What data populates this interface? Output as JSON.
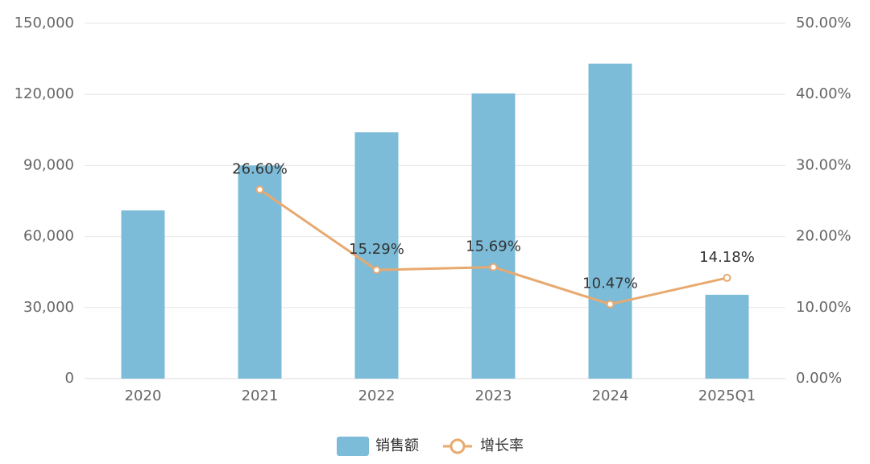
{
  "chart_data": {
    "type": "bar-line",
    "categories": [
      "2020",
      "2021",
      "2022",
      "2023",
      "2024",
      "2025Q1"
    ],
    "series": [
      {
        "name": "销售额",
        "type": "bar",
        "color": "#7cbcd9",
        "values": [
          71000,
          90000,
          104000,
          120400,
          133000,
          35400
        ]
      },
      {
        "name": "增长率",
        "type": "line",
        "axis": "y2",
        "color": "#e8a96f",
        "values": [
          null,
          26.6,
          15.29,
          15.69,
          10.47,
          14.18
        ],
        "value_labels": [
          null,
          "26.60%",
          "15.29%",
          "15.69%",
          "10.47%",
          "14.18%"
        ]
      }
    ],
    "ylim": [
      0,
      150000
    ],
    "yticks": [
      0,
      {
        "value": 30000,
        "label": "30,000"
      },
      {
        "value": 60000,
        "label": "60,000"
      },
      {
        "value": 90000,
        "label": "90,000"
      },
      {
        "value": 120000,
        "label": "120,000"
      },
      {
        "value": 150000,
        "label": "150,000"
      }
    ],
    "y2lim": [
      0,
      50
    ],
    "y2ticks": [
      {
        "value": 0,
        "label": "0.00%"
      },
      {
        "value": 10,
        "label": "10.00%"
      },
      {
        "value": 20,
        "label": "20.00%"
      },
      {
        "value": 30,
        "label": "30.00%"
      },
      {
        "value": 40,
        "label": "40.00%"
      },
      {
        "value": 50,
        "label": "50.00%"
      }
    ],
    "grid": true,
    "legend": "bottom"
  }
}
